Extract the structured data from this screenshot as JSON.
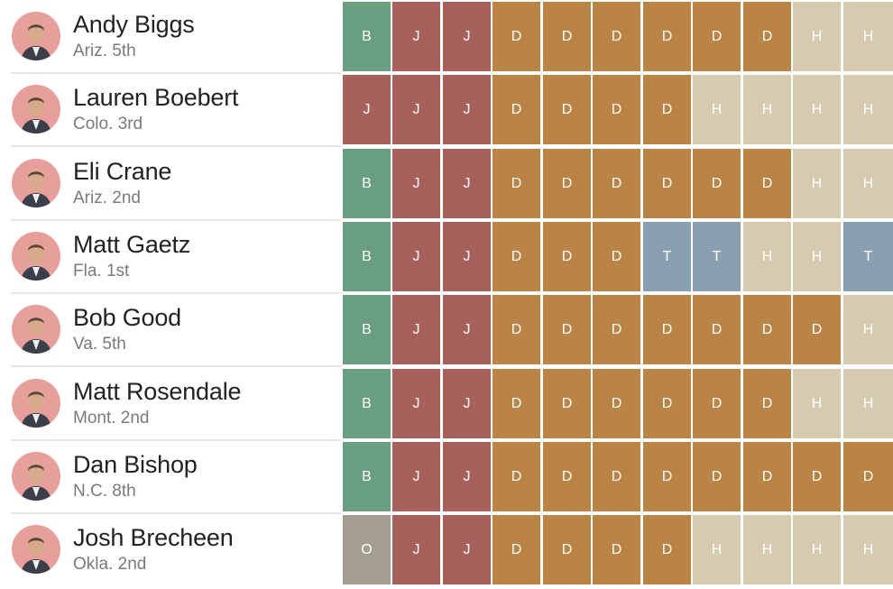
{
  "legend_colors": {
    "B": "#6a9e82",
    "J": "#a8605c",
    "D": "#ba8446",
    "H": "#d6cbb0",
    "T": "#89a0b2",
    "O": "#a39e8f"
  },
  "chart_data": {
    "type": "table",
    "title": "",
    "columns": 11,
    "rows": [
      {
        "name": "Andy Biggs",
        "district": "Ariz. 5th",
        "votes": [
          "B",
          "J",
          "J",
          "D",
          "D",
          "D",
          "D",
          "D",
          "D",
          "H",
          "H"
        ]
      },
      {
        "name": "Lauren Boebert",
        "district": "Colo. 3rd",
        "votes": [
          "J",
          "J",
          "J",
          "D",
          "D",
          "D",
          "D",
          "H",
          "H",
          "H",
          "H"
        ]
      },
      {
        "name": "Eli Crane",
        "district": "Ariz. 2nd",
        "votes": [
          "B",
          "J",
          "J",
          "D",
          "D",
          "D",
          "D",
          "D",
          "D",
          "H",
          "H"
        ]
      },
      {
        "name": "Matt Gaetz",
        "district": "Fla. 1st",
        "votes": [
          "B",
          "J",
          "J",
          "D",
          "D",
          "D",
          "T",
          "T",
          "H",
          "H",
          "T"
        ]
      },
      {
        "name": "Bob Good",
        "district": "Va. 5th",
        "votes": [
          "B",
          "J",
          "J",
          "D",
          "D",
          "D",
          "D",
          "D",
          "D",
          "D",
          "H"
        ]
      },
      {
        "name": "Matt Rosendale",
        "district": "Mont. 2nd",
        "votes": [
          "B",
          "J",
          "J",
          "D",
          "D",
          "D",
          "D",
          "D",
          "D",
          "H",
          "H"
        ]
      },
      {
        "name": "Dan Bishop",
        "district": "N.C. 8th",
        "votes": [
          "B",
          "J",
          "J",
          "D",
          "D",
          "D",
          "D",
          "D",
          "D",
          "D",
          "D"
        ]
      },
      {
        "name": "Josh Brecheen",
        "district": "Okla. 2nd",
        "votes": [
          "O",
          "J",
          "J",
          "D",
          "D",
          "D",
          "D",
          "H",
          "H",
          "H",
          "H"
        ]
      }
    ]
  }
}
